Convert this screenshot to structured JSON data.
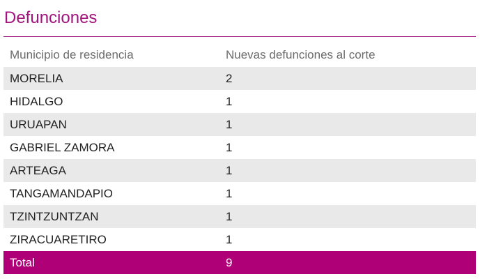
{
  "title": "Defunciones",
  "table": {
    "headers": [
      "Municipio de residencia",
      "Nuevas defunciones al corte"
    ],
    "rows": [
      {
        "municipio": "MORELIA",
        "defunciones": "2"
      },
      {
        "municipio": "HIDALGO",
        "defunciones": "1"
      },
      {
        "municipio": "URUAPAN",
        "defunciones": "1"
      },
      {
        "municipio": "GABRIEL ZAMORA",
        "defunciones": "1"
      },
      {
        "municipio": "ARTEAGA",
        "defunciones": "1"
      },
      {
        "municipio": "TANGAMANDAPIO",
        "defunciones": "1"
      },
      {
        "municipio": "TZINTZUNTZAN",
        "defunciones": "1"
      },
      {
        "municipio": "ZIRACUARETIRO",
        "defunciones": "1"
      }
    ],
    "total": {
      "label": "Total",
      "value": "9"
    }
  },
  "colors": {
    "accent": "#a1147f",
    "total_bg": "#b00078",
    "row_shade": "#e9e9e9"
  }
}
